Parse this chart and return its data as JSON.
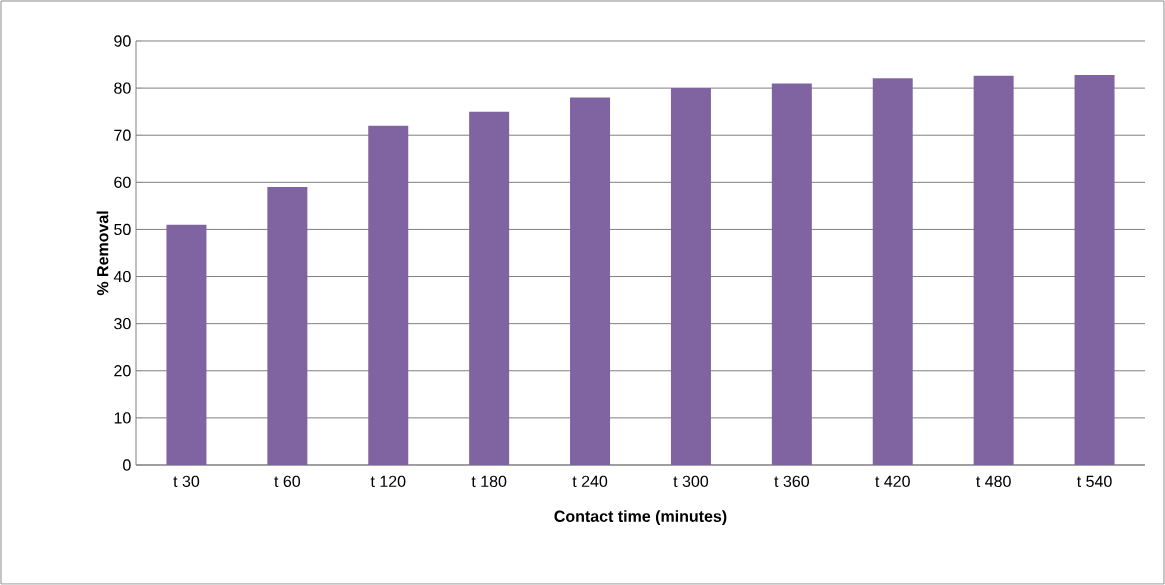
{
  "chart_data": {
    "type": "bar",
    "xlabel": "Contact time (minutes)",
    "ylabel": "% Removal",
    "categories": [
      "t 30",
      "t 60",
      "t 120",
      "t 180",
      "t 240",
      "t 300",
      "t 360",
      "t 420",
      "t 480",
      "t 540"
    ],
    "values": [
      51,
      59,
      72,
      75,
      78,
      80,
      81,
      82.1,
      82.6,
      82.8
    ],
    "color": "#8064a2",
    "ylim": [
      0,
      90
    ],
    "yticks": [
      0,
      10,
      20,
      30,
      40,
      50,
      60,
      70,
      80,
      90
    ],
    "grid": "y"
  }
}
